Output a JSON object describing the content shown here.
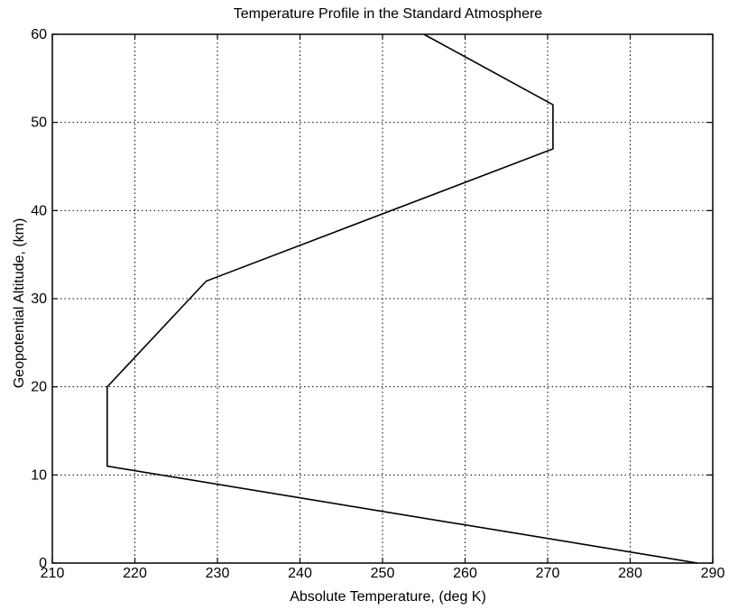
{
  "chart_data": {
    "type": "line",
    "title": "Temperature Profile in the Standard Atmosphere",
    "xlabel": "Absolute Temperature, (deg K)",
    "ylabel": "Geopotential Altitude, (km)",
    "xlim": [
      210,
      290
    ],
    "ylim": [
      0,
      60
    ],
    "xticks": [
      210,
      220,
      230,
      240,
      250,
      260,
      270,
      280,
      290
    ],
    "yticks": [
      0,
      10,
      20,
      30,
      40,
      50,
      60
    ],
    "grid": true,
    "series": [
      {
        "x": [
          288.15,
          216.65,
          216.65,
          228.65,
          270.65,
          270.65,
          255.0
        ],
        "y": [
          0,
          11,
          20,
          32,
          47,
          52,
          60
        ]
      }
    ]
  }
}
